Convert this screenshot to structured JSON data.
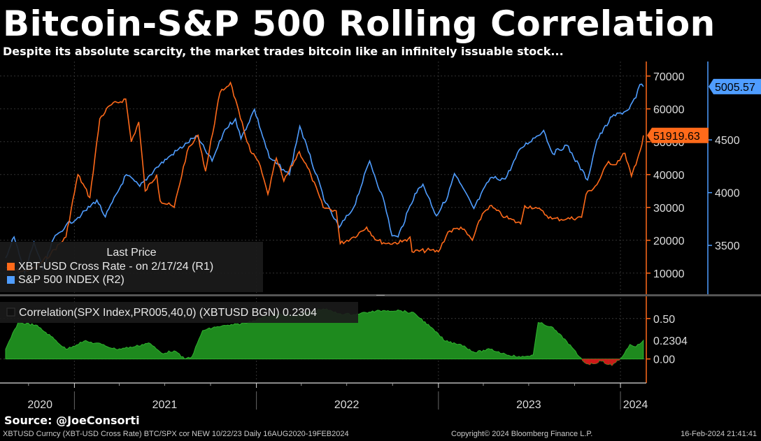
{
  "title": "Bitcoin-S&P 500 Rolling Correlation",
  "subtitle": "Despite its absolute scarcity, the market trades bitcoin like an infinitely issuable stock...",
  "source": "Source: @JoeConsorti",
  "footer": {
    "left": "XBTUSD Curncy (XBT-USD Cross Rate) BTC/SPX cor NEW 10/22/23  Daily 16AUG2020-19FEB2024",
    "center": "Copyright© 2024 Bloomberg Finance L.P.",
    "right": "16-Feb-2024 21:41:41"
  },
  "legend": {
    "header": "Last Price",
    "items": [
      {
        "label": "XBT-USD Cross Rate -  on 2/17/24  (R1)",
        "color": "#ff6a1a"
      },
      {
        "label": "S&P 500 INDEX  (R2)",
        "color": "#4f9dff"
      }
    ]
  },
  "corr_legend": "Correlation(SPX Index,PR005,40,0) (XBTUSD BGN) 0.2304",
  "chart_data": [
    {
      "type": "line",
      "x_range": [
        "2020-08-16",
        "2024-02-19"
      ],
      "x_tick_labels": [
        "2020",
        "2021",
        "2022",
        "2023",
        "2024"
      ],
      "series": [
        {
          "name": "XBT-USD Cross Rate",
          "axis": "R1",
          "color": "#ff6a1a",
          "last_value_label": "51919.63",
          "points": [
            [
              "2020-08-16",
              11800
            ],
            [
              "2020-09-15",
              10500
            ],
            [
              "2020-10-15",
              11500
            ],
            [
              "2020-11-15",
              16000
            ],
            [
              "2020-12-15",
              21000
            ],
            [
              "2021-01-08",
              40000
            ],
            [
              "2021-02-01",
              33000
            ],
            [
              "2021-02-21",
              57000
            ],
            [
              "2021-03-13",
              61000
            ],
            [
              "2021-04-14",
              63000
            ],
            [
              "2021-04-25",
              50000
            ],
            [
              "2021-05-10",
              56000
            ],
            [
              "2021-05-23",
              35000
            ],
            [
              "2021-06-15",
              40000
            ],
            [
              "2021-06-22",
              32000
            ],
            [
              "2021-07-20",
              30000
            ],
            [
              "2021-08-15",
              47000
            ],
            [
              "2021-09-06",
              52000
            ],
            [
              "2021-09-21",
              41000
            ],
            [
              "2021-10-20",
              65000
            ],
            [
              "2021-11-10",
              68000
            ],
            [
              "2021-11-30",
              57000
            ],
            [
              "2021-12-20",
              47000
            ],
            [
              "2022-01-05",
              44000
            ],
            [
              "2022-01-24",
              34000
            ],
            [
              "2022-02-10",
              45000
            ],
            [
              "2022-02-25",
              38000
            ],
            [
              "2022-03-28",
              47000
            ],
            [
              "2022-04-20",
              40000
            ],
            [
              "2022-05-15",
              30000
            ],
            [
              "2022-06-10",
              29000
            ],
            [
              "2022-06-18",
              19000
            ],
            [
              "2022-07-15",
              21000
            ],
            [
              "2022-08-10",
              24000
            ],
            [
              "2022-08-30",
              20000
            ],
            [
              "2022-09-20",
              19000
            ],
            [
              "2022-10-20",
              19500
            ],
            [
              "2022-11-05",
              21000
            ],
            [
              "2022-11-09",
              16500
            ],
            [
              "2022-12-15",
              17000
            ],
            [
              "2023-01-01",
              16500
            ],
            [
              "2023-01-20",
              22500
            ],
            [
              "2023-02-15",
              24000
            ],
            [
              "2023-03-10",
              20000
            ],
            [
              "2023-03-30",
              28000
            ],
            [
              "2023-04-14",
              30500
            ],
            [
              "2023-05-15",
              27000
            ],
            [
              "2023-06-15",
              25000
            ],
            [
              "2023-06-23",
              30500
            ],
            [
              "2023-07-15",
              30000
            ],
            [
              "2023-08-17",
              26500
            ],
            [
              "2023-09-15",
              26500
            ],
            [
              "2023-10-15",
              27000
            ],
            [
              "2023-10-24",
              34000
            ],
            [
              "2023-11-15",
              37000
            ],
            [
              "2023-12-08",
              44000
            ],
            [
              "2023-12-20",
              43000
            ],
            [
              "2024-01-10",
              46500
            ],
            [
              "2024-01-23",
              39500
            ],
            [
              "2024-02-01",
              43000
            ],
            [
              "2024-02-10",
              47500
            ],
            [
              "2024-02-16",
              51919.63
            ]
          ]
        },
        {
          "name": "S&P 500 INDEX",
          "axis": "R2",
          "color": "#4f9dff",
          "last_value_label": "5005.57",
          "points": [
            [
              "2020-08-16",
              3380
            ],
            [
              "2020-09-02",
              3580
            ],
            [
              "2020-09-23",
              3240
            ],
            [
              "2020-10-12",
              3530
            ],
            [
              "2020-10-30",
              3270
            ],
            [
              "2020-11-20",
              3560
            ],
            [
              "2020-12-15",
              3690
            ],
            [
              "2021-01-15",
              3790
            ],
            [
              "2021-02-15",
              3930
            ],
            [
              "2021-03-04",
              3770
            ],
            [
              "2021-04-15",
              4170
            ],
            [
              "2021-05-12",
              4060
            ],
            [
              "2021-06-15",
              4240
            ],
            [
              "2021-07-15",
              4360
            ],
            [
              "2021-08-15",
              4470
            ],
            [
              "2021-09-02",
              4540
            ],
            [
              "2021-10-04",
              4300
            ],
            [
              "2021-10-30",
              4600
            ],
            [
              "2021-11-20",
              4700
            ],
            [
              "2021-12-01",
              4510
            ],
            [
              "2021-12-28",
              4790
            ],
            [
              "2022-01-27",
              4330
            ],
            [
              "2022-02-24",
              4220
            ],
            [
              "2022-03-08",
              4170
            ],
            [
              "2022-03-29",
              4630
            ],
            [
              "2022-04-15",
              4390
            ],
            [
              "2022-05-20",
              3900
            ],
            [
              "2022-06-16",
              3670
            ],
            [
              "2022-07-15",
              3860
            ],
            [
              "2022-08-16",
              4300
            ],
            [
              "2022-09-15",
              3900
            ],
            [
              "2022-09-30",
              3590
            ],
            [
              "2022-10-12",
              3580
            ],
            [
              "2022-11-15",
              3990
            ],
            [
              "2022-12-01",
              4080
            ],
            [
              "2022-12-28",
              3780
            ],
            [
              "2023-01-20",
              3970
            ],
            [
              "2023-02-02",
              4180
            ],
            [
              "2023-03-13",
              3850
            ],
            [
              "2023-04-15",
              4140
            ],
            [
              "2023-05-15",
              4130
            ],
            [
              "2023-06-15",
              4420
            ],
            [
              "2023-07-31",
              4590
            ],
            [
              "2023-08-18",
              4370
            ],
            [
              "2023-09-15",
              4450
            ],
            [
              "2023-10-27",
              4120
            ],
            [
              "2023-11-15",
              4500
            ],
            [
              "2023-12-15",
              4720
            ],
            [
              "2024-01-15",
              4780
            ],
            [
              "2024-02-01",
              4900
            ],
            [
              "2024-02-09",
              5026
            ],
            [
              "2024-02-16",
              5005.57
            ]
          ]
        }
      ],
      "axes": {
        "R1": {
          "range": [
            4000,
            74000
          ],
          "ticks": [
            10000,
            20000,
            30000,
            40000,
            50000,
            60000,
            70000
          ],
          "color": "#ff6a1a"
        },
        "R2": {
          "range": [
            3050,
            5230
          ],
          "ticks": [
            3500,
            4000,
            4500
          ],
          "color": "#4f9dff"
        }
      }
    },
    {
      "type": "area",
      "name": "Correlation(SPX Index,PR005,40,0) (XBTUSD BGN)",
      "color": "#1e8a1e",
      "last_value_label": "0.2304",
      "y_range": [
        -0.28,
        0.74
      ],
      "y_ticks": [
        0.0,
        0.5
      ],
      "points": [
        [
          "2020-08-16",
          0.12
        ],
        [
          "2020-09-10",
          0.45
        ],
        [
          "2020-10-15",
          0.42
        ],
        [
          "2020-11-15",
          0.28
        ],
        [
          "2020-12-15",
          0.12
        ],
        [
          "2021-01-20",
          0.22
        ],
        [
          "2021-02-25",
          0.18
        ],
        [
          "2021-03-25",
          0.12
        ],
        [
          "2021-04-30",
          0.15
        ],
        [
          "2021-05-30",
          0.2
        ],
        [
          "2021-06-25",
          0.07
        ],
        [
          "2021-07-20",
          0.1
        ],
        [
          "2021-08-10",
          0.0
        ],
        [
          "2021-08-25",
          0.03
        ],
        [
          "2021-09-15",
          0.35
        ],
        [
          "2021-10-15",
          0.4
        ],
        [
          "2021-11-15",
          0.42
        ],
        [
          "2021-12-15",
          0.45
        ],
        [
          "2022-01-15",
          0.52
        ],
        [
          "2022-02-15",
          0.55
        ],
        [
          "2022-03-15",
          0.53
        ],
        [
          "2022-04-15",
          0.58
        ],
        [
          "2022-05-15",
          0.62
        ],
        [
          "2022-06-15",
          0.56
        ],
        [
          "2022-07-15",
          0.55
        ],
        [
          "2022-08-15",
          0.58
        ],
        [
          "2022-09-15",
          0.6
        ],
        [
          "2022-10-15",
          0.6
        ],
        [
          "2022-11-15",
          0.56
        ],
        [
          "2022-12-15",
          0.4
        ],
        [
          "2023-01-15",
          0.22
        ],
        [
          "2023-02-15",
          0.18
        ],
        [
          "2023-03-15",
          0.08
        ],
        [
          "2023-04-15",
          0.12
        ],
        [
          "2023-05-15",
          0.06
        ],
        [
          "2023-06-15",
          0.02
        ],
        [
          "2023-07-10",
          0.05
        ],
        [
          "2023-07-20",
          0.45
        ],
        [
          "2023-08-15",
          0.4
        ],
        [
          "2023-09-15",
          0.22
        ],
        [
          "2023-10-10",
          0.03
        ],
        [
          "2023-10-25",
          -0.06
        ],
        [
          "2023-11-10",
          -0.06
        ],
        [
          "2023-11-20",
          -0.02
        ],
        [
          "2023-12-15",
          -0.08
        ],
        [
          "2024-01-05",
          0.03
        ],
        [
          "2024-01-20",
          0.18
        ],
        [
          "2024-02-01",
          0.15
        ],
        [
          "2024-02-16",
          0.2304
        ]
      ]
    }
  ]
}
